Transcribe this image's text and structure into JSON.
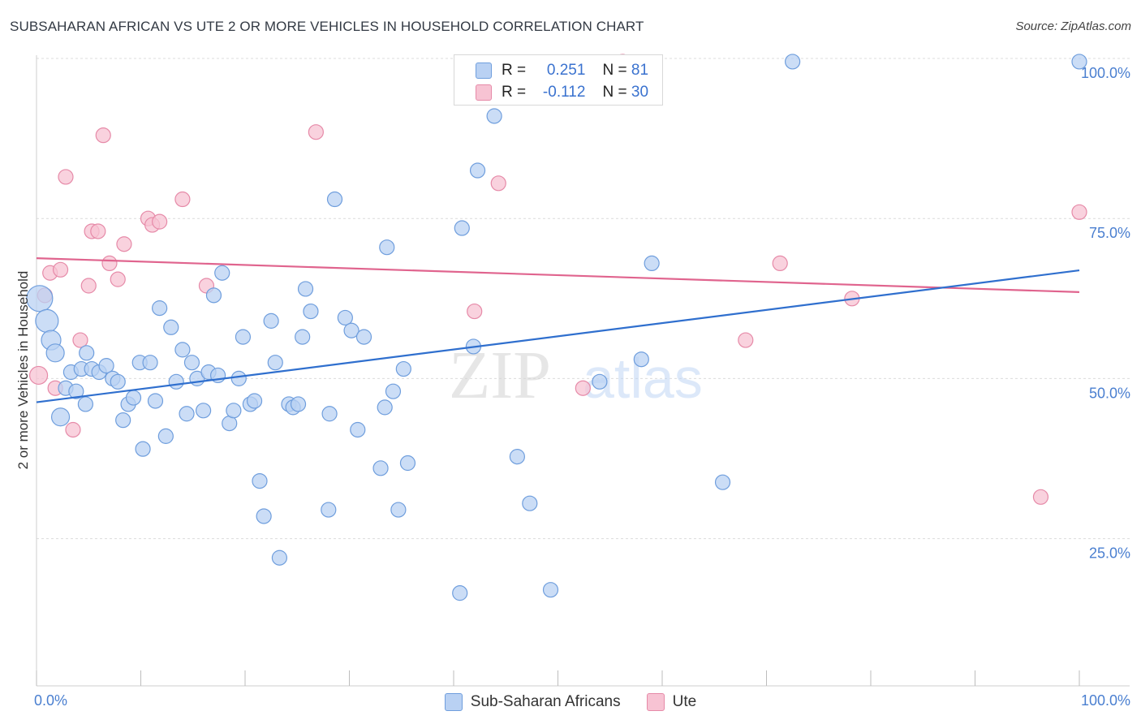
{
  "title": "SUBSAHARAN AFRICAN VS UTE 2 OR MORE VEHICLES IN HOUSEHOLD CORRELATION CHART",
  "source": "Source: ZipAtlas.com",
  "watermark": {
    "zip": "ZIP",
    "atlas": "atlas"
  },
  "legend": {
    "rows": [
      {
        "r_label": "R =",
        "r_value": "0.251",
        "n_label": "N =",
        "n_value": "81"
      },
      {
        "r_label": "R =",
        "r_value": "-0.112",
        "n_label": "N =",
        "n_value": "30"
      }
    ]
  },
  "bottom_legend": [
    "Sub-Saharan Africans",
    "Ute"
  ],
  "colors": {
    "blue_fill": "#b9d1f3",
    "blue_stroke": "#6f9edd",
    "blue_line": "#2f6fce",
    "pink_fill": "#f7c3d3",
    "pink_stroke": "#e68aa8",
    "pink_line": "#e0648e",
    "tick_text": "#4a7fd0"
  },
  "chart_data": {
    "type": "scatter",
    "title": "SUBSAHARAN AFRICAN VS UTE 2 OR MORE VEHICLES IN HOUSEHOLD CORRELATION CHART",
    "xlabel": "",
    "ylabel": "2 or more Vehicles in Household",
    "xlim": [
      0,
      100
    ],
    "ylim": [
      2,
      100
    ],
    "x_tick_labels": [
      "0.0%",
      "100.0%"
    ],
    "y_ticks": [
      25,
      50,
      75,
      100
    ],
    "y_tick_labels": [
      "25.0%",
      "50.0%",
      "75.0%",
      "100.0%"
    ],
    "grid": true,
    "series": [
      {
        "name": "Sub-Saharan Africans",
        "r": 0.251,
        "n": 81,
        "trend": {
          "x": [
            0,
            100
          ],
          "y": [
            46.3,
            66.9
          ]
        },
        "points": [
          {
            "x": 0.3,
            "y": 62.5,
            "s": 16
          },
          {
            "x": 1.0,
            "y": 59.0,
            "s": 14
          },
          {
            "x": 1.4,
            "y": 56.0,
            "s": 12
          },
          {
            "x": 1.8,
            "y": 54.0,
            "s": 11
          },
          {
            "x": 2.3,
            "y": 44.0,
            "s": 11
          },
          {
            "x": 2.8,
            "y": 48.5,
            "s": 9
          },
          {
            "x": 3.3,
            "y": 51.0,
            "s": 9
          },
          {
            "x": 3.8,
            "y": 48.0,
            "s": 9
          },
          {
            "x": 4.3,
            "y": 51.5,
            "s": 9
          },
          {
            "x": 4.7,
            "y": 46.0,
            "s": 9
          },
          {
            "x": 4.8,
            "y": 54.0,
            "s": 9
          },
          {
            "x": 5.3,
            "y": 51.5,
            "s": 9
          },
          {
            "x": 6.0,
            "y": 51.0,
            "s": 9
          },
          {
            "x": 6.7,
            "y": 52.0,
            "s": 9
          },
          {
            "x": 7.3,
            "y": 50.0,
            "s": 9
          },
          {
            "x": 7.8,
            "y": 49.5,
            "s": 9
          },
          {
            "x": 8.3,
            "y": 43.5,
            "s": 9
          },
          {
            "x": 8.8,
            "y": 46.0,
            "s": 9
          },
          {
            "x": 9.3,
            "y": 47.0,
            "s": 9
          },
          {
            "x": 10.2,
            "y": 39.0,
            "s": 9
          },
          {
            "x": 9.9,
            "y": 52.5,
            "s": 9
          },
          {
            "x": 10.9,
            "y": 52.5,
            "s": 9
          },
          {
            "x": 11.4,
            "y": 46.5,
            "s": 9
          },
          {
            "x": 11.8,
            "y": 61.0,
            "s": 9
          },
          {
            "x": 12.4,
            "y": 41.0,
            "s": 9
          },
          {
            "x": 12.9,
            "y": 58.0,
            "s": 9
          },
          {
            "x": 13.4,
            "y": 49.5,
            "s": 9
          },
          {
            "x": 14.0,
            "y": 54.5,
            "s": 9
          },
          {
            "x": 14.4,
            "y": 44.5,
            "s": 9
          },
          {
            "x": 14.9,
            "y": 52.5,
            "s": 9
          },
          {
            "x": 15.4,
            "y": 50.0,
            "s": 9
          },
          {
            "x": 16.0,
            "y": 45.0,
            "s": 9
          },
          {
            "x": 16.5,
            "y": 51.0,
            "s": 9
          },
          {
            "x": 17.0,
            "y": 63.0,
            "s": 9
          },
          {
            "x": 17.4,
            "y": 50.5,
            "s": 9
          },
          {
            "x": 17.8,
            "y": 66.5,
            "s": 9
          },
          {
            "x": 18.5,
            "y": 43.0,
            "s": 9
          },
          {
            "x": 18.9,
            "y": 45.0,
            "s": 9
          },
          {
            "x": 19.4,
            "y": 50.0,
            "s": 9
          },
          {
            "x": 19.8,
            "y": 56.5,
            "s": 9
          },
          {
            "x": 20.5,
            "y": 46.0,
            "s": 9
          },
          {
            "x": 20.9,
            "y": 46.5,
            "s": 9
          },
          {
            "x": 21.4,
            "y": 34.0,
            "s": 9
          },
          {
            "x": 21.8,
            "y": 28.5,
            "s": 9
          },
          {
            "x": 22.5,
            "y": 59.0,
            "s": 9
          },
          {
            "x": 22.9,
            "y": 52.5,
            "s": 9
          },
          {
            "x": 23.3,
            "y": 22.0,
            "s": 9
          },
          {
            "x": 24.2,
            "y": 46.0,
            "s": 9
          },
          {
            "x": 24.6,
            "y": 45.5,
            "s": 9
          },
          {
            "x": 25.1,
            "y": 46.0,
            "s": 9
          },
          {
            "x": 25.5,
            "y": 56.5,
            "s": 9
          },
          {
            "x": 25.8,
            "y": 64.0,
            "s": 9
          },
          {
            "x": 26.3,
            "y": 60.5,
            "s": 9
          },
          {
            "x": 28.0,
            "y": 29.5,
            "s": 9
          },
          {
            "x": 28.1,
            "y": 44.5,
            "s": 9
          },
          {
            "x": 28.6,
            "y": 78.0,
            "s": 9
          },
          {
            "x": 29.6,
            "y": 59.5,
            "s": 9
          },
          {
            "x": 30.2,
            "y": 57.5,
            "s": 9
          },
          {
            "x": 30.8,
            "y": 42.0,
            "s": 9
          },
          {
            "x": 31.4,
            "y": 56.5,
            "s": 9
          },
          {
            "x": 33.0,
            "y": 36.0,
            "s": 9
          },
          {
            "x": 33.4,
            "y": 45.5,
            "s": 9
          },
          {
            "x": 33.6,
            "y": 70.5,
            "s": 9
          },
          {
            "x": 34.2,
            "y": 48.0,
            "s": 9
          },
          {
            "x": 34.7,
            "y": 29.5,
            "s": 9
          },
          {
            "x": 35.2,
            "y": 51.5,
            "s": 9
          },
          {
            "x": 35.6,
            "y": 36.8,
            "s": 9
          },
          {
            "x": 40.6,
            "y": 16.5,
            "s": 9
          },
          {
            "x": 40.8,
            "y": 73.5,
            "s": 9
          },
          {
            "x": 41.9,
            "y": 55.0,
            "s": 9
          },
          {
            "x": 42.3,
            "y": 82.5,
            "s": 9
          },
          {
            "x": 43.9,
            "y": 91.0,
            "s": 9
          },
          {
            "x": 46.1,
            "y": 37.8,
            "s": 9
          },
          {
            "x": 47.3,
            "y": 30.5,
            "s": 9
          },
          {
            "x": 49.3,
            "y": 17.0,
            "s": 9
          },
          {
            "x": 54.0,
            "y": 49.5,
            "s": 9
          },
          {
            "x": 58.0,
            "y": 53.0,
            "s": 9
          },
          {
            "x": 59.0,
            "y": 68.0,
            "s": 9
          },
          {
            "x": 65.8,
            "y": 33.8,
            "s": 9
          },
          {
            "x": 72.5,
            "y": 99.5,
            "s": 9
          },
          {
            "x": 100.0,
            "y": 99.5,
            "s": 9
          }
        ]
      },
      {
        "name": "Ute",
        "r": -0.112,
        "n": 30,
        "trend": {
          "x": [
            0,
            100
          ],
          "y": [
            68.8,
            63.5
          ]
        },
        "points": [
          {
            "x": 0.2,
            "y": 50.5,
            "s": 11
          },
          {
            "x": 0.8,
            "y": 63.0,
            "s": 9
          },
          {
            "x": 1.3,
            "y": 66.5,
            "s": 9
          },
          {
            "x": 1.8,
            "y": 48.5,
            "s": 9
          },
          {
            "x": 2.3,
            "y": 67.0,
            "s": 9
          },
          {
            "x": 2.8,
            "y": 81.5,
            "s": 9
          },
          {
            "x": 3.5,
            "y": 42.0,
            "s": 9
          },
          {
            "x": 4.2,
            "y": 56.0,
            "s": 9
          },
          {
            "x": 5.0,
            "y": 64.5,
            "s": 9
          },
          {
            "x": 5.3,
            "y": 73.0,
            "s": 9
          },
          {
            "x": 5.9,
            "y": 73.0,
            "s": 9
          },
          {
            "x": 6.4,
            "y": 88.0,
            "s": 9
          },
          {
            "x": 7.0,
            "y": 68.0,
            "s": 9
          },
          {
            "x": 7.8,
            "y": 65.5,
            "s": 9
          },
          {
            "x": 8.4,
            "y": 71.0,
            "s": 9
          },
          {
            "x": 10.7,
            "y": 75.0,
            "s": 9
          },
          {
            "x": 11.1,
            "y": 74.0,
            "s": 9
          },
          {
            "x": 11.8,
            "y": 74.5,
            "s": 9
          },
          {
            "x": 14.0,
            "y": 78.0,
            "s": 9
          },
          {
            "x": 16.3,
            "y": 64.5,
            "s": 9
          },
          {
            "x": 26.8,
            "y": 88.5,
            "s": 9
          },
          {
            "x": 42.0,
            "y": 60.5,
            "s": 9
          },
          {
            "x": 44.3,
            "y": 80.5,
            "s": 9
          },
          {
            "x": 52.4,
            "y": 48.5,
            "s": 9
          },
          {
            "x": 56.2,
            "y": 99.5,
            "s": 9
          },
          {
            "x": 68.0,
            "y": 56.0,
            "s": 9
          },
          {
            "x": 71.3,
            "y": 68.0,
            "s": 9
          },
          {
            "x": 78.2,
            "y": 62.5,
            "s": 9
          },
          {
            "x": 96.3,
            "y": 31.5,
            "s": 9
          },
          {
            "x": 100.0,
            "y": 76.0,
            "s": 9
          }
        ]
      }
    ]
  }
}
